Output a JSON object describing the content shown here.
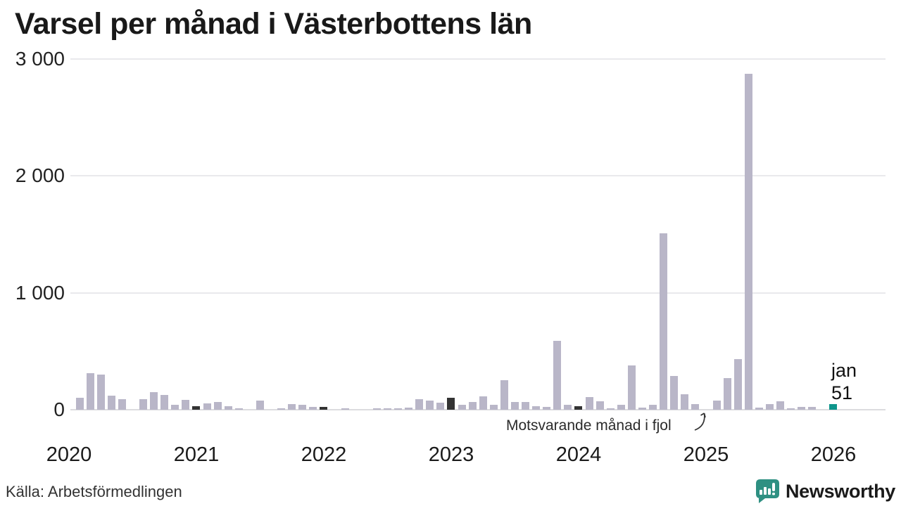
{
  "title": "Varsel per månad i Västerbottens län",
  "chart_data": {
    "type": "bar",
    "title": "Varsel per månad i Västerbottens län",
    "xlabel": "",
    "ylabel": "",
    "ylim": [
      0,
      3000
    ],
    "grid": "horizontal",
    "y_ticks": [
      "3 000",
      "2 000",
      "1 000",
      "0"
    ],
    "x_ticks": [
      "2020",
      "2021",
      "2022",
      "2023",
      "2024",
      "2025",
      "2026"
    ],
    "start_month": "jan 2020",
    "end_month": "jan 2026",
    "values_by_year": {
      "2020": [
        0,
        100,
        315,
        300,
        123,
        93,
        0,
        90,
        150,
        126,
        42,
        84
      ],
      "2021": [
        30,
        54,
        66,
        30,
        15,
        0,
        80,
        0,
        12,
        51,
        42,
        24
      ],
      "2022": [
        24,
        0,
        12,
        0,
        0,
        12,
        12,
        12,
        18,
        90,
        78,
        60
      ],
      "2023": [
        102,
        42,
        66,
        114,
        40,
        252,
        66,
        66,
        30,
        22,
        590,
        44
      ],
      "2024": [
        32,
        108,
        70,
        12,
        44,
        378,
        20,
        40,
        1510,
        290,
        134,
        50
      ],
      "2025": [
        0,
        80,
        270,
        435,
        2870,
        20,
        46,
        70,
        14,
        26,
        26,
        0
      ],
      "2026": [
        51
      ]
    },
    "highlight_rule": "january bars dark (comparison months), latest month teal",
    "colors": {
      "bar_default": "#b9b6c8",
      "bar_january_dark": "#333333",
      "bar_latest_teal": "#0e968c",
      "gridline": "#e9e9ec",
      "baseline": "#dcdcdf"
    },
    "legend_position": "none"
  },
  "last_point_label": {
    "month": "jan",
    "value": "51"
  },
  "annotation": {
    "text": "Motsvarande månad i fjol"
  },
  "footer": {
    "source": "Källa: Arbetsförmedlingen",
    "brand": "Newsworthy",
    "brand_color": "#2e9082"
  }
}
